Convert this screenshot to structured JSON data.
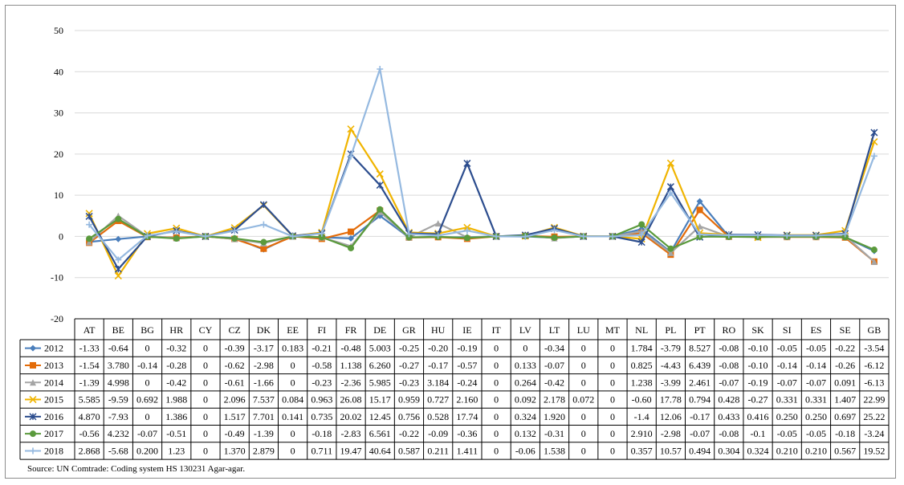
{
  "source_note": "Source: UN Comtrade: Coding system HS 130231 Agar-agar.",
  "chart_data": {
    "type": "line",
    "title": "",
    "xlabel": "",
    "ylabel": "",
    "ylim": [
      -20,
      50
    ],
    "yticks": [
      -20,
      -10,
      0,
      10,
      20,
      30,
      40,
      50
    ],
    "grid": true,
    "legend": "data-table-left",
    "categories": [
      "AT",
      "BE",
      "BG",
      "HR",
      "CY",
      "CZ",
      "DK",
      "EE",
      "FI",
      "FR",
      "DE",
      "GR",
      "HU",
      "IE",
      "IT",
      "LV",
      "LT",
      "LU",
      "MT",
      "NL",
      "PL",
      "PT",
      "RO",
      "SK",
      "SI",
      "ES",
      "SE",
      "GB"
    ],
    "series": [
      {
        "name": "2012",
        "color": "#4a7ebb",
        "marker": "diamond",
        "values": [
          -1.33,
          -0.64,
          0,
          -0.32,
          0,
          -0.39,
          -3.17,
          0.183,
          -0.21,
          -0.48,
          5.003,
          -0.25,
          -0.2,
          -0.19,
          0,
          0,
          -0.34,
          0,
          0,
          1.784,
          -3.79,
          8.527,
          -0.08,
          -0.1,
          -0.05,
          -0.05,
          -0.22,
          -3.54
        ],
        "labels": [
          "-1.33",
          "-0.64",
          "0",
          "-0.32",
          "0",
          "-0.39",
          "-3.17",
          "0.183",
          "-0.21",
          "-0.48",
          "5.003",
          "-0.25",
          "-0.20",
          "-0.19",
          "0",
          "0",
          "-0.34",
          "0",
          "0",
          "1.784",
          "-3.79",
          "8.527",
          "-0.08",
          "-0.10",
          "-0.05",
          "-0.05",
          "-0.22",
          "-3.54"
        ]
      },
      {
        "name": "2013",
        "color": "#e36c0a",
        "marker": "square",
        "values": [
          -1.54,
          3.78,
          -0.14,
          -0.28,
          0,
          -0.62,
          -2.98,
          0,
          -0.58,
          1.138,
          6.26,
          -0.27,
          -0.17,
          -0.57,
          0,
          0.133,
          -0.07,
          0,
          0,
          0.825,
          -4.43,
          6.439,
          -0.08,
          -0.1,
          -0.14,
          -0.14,
          -0.26,
          -6.12
        ],
        "labels": [
          "-1.54",
          "3.780",
          "-0.14",
          "-0.28",
          "0",
          "-0.62",
          "-2.98",
          "0",
          "-0.58",
          "1.138",
          "6.260",
          "-0.27",
          "-0.17",
          "-0.57",
          "0",
          "0.133",
          "-0.07",
          "0",
          "0",
          "0.825",
          "-4.43",
          "6.439",
          "-0.08",
          "-0.10",
          "-0.14",
          "-0.14",
          "-0.26",
          "-6.12"
        ]
      },
      {
        "name": "2014",
        "color": "#a5a5a5",
        "marker": "triangle",
        "values": [
          -1.39,
          4.998,
          0,
          -0.42,
          0,
          -0.61,
          -1.66,
          0,
          -0.23,
          -2.36,
          5.985,
          -0.23,
          3.184,
          -0.24,
          0,
          0.264,
          -0.42,
          0,
          0,
          1.238,
          -3.99,
          2.461,
          -0.07,
          -0.19,
          -0.07,
          -0.07,
          0.091,
          -6.13
        ],
        "labels": [
          "-1.39",
          "4.998",
          "0",
          "-0.42",
          "0",
          "-0.61",
          "-1.66",
          "0",
          "-0.23",
          "-2.36",
          "5.985",
          "-0.23",
          "3.184",
          "-0.24",
          "0",
          "0.264",
          "-0.42",
          "0",
          "0",
          "1.238",
          "-3.99",
          "2.461",
          "-0.07",
          "-0.19",
          "-0.07",
          "-0.07",
          "0.091",
          "-6.13"
        ]
      },
      {
        "name": "2015",
        "color": "#f0b400",
        "marker": "x",
        "values": [
          5.585,
          -9.59,
          0.692,
          1.988,
          0,
          2.096,
          7.537,
          0.084,
          0.963,
          26.08,
          15.17,
          0.959,
          0.727,
          2.16,
          0,
          0.092,
          2.178,
          0.072,
          0,
          -0.6,
          17.78,
          0.794,
          0.428,
          -0.27,
          0.331,
          0.331,
          1.407,
          22.99
        ],
        "labels": [
          "5.585",
          "-9.59",
          "0.692",
          "1.988",
          "0",
          "2.096",
          "7.537",
          "0.084",
          "0.963",
          "26.08",
          "15.17",
          "0.959",
          "0.727",
          "2.160",
          "0",
          "0.092",
          "2.178",
          "0.072",
          "0",
          "-0.60",
          "17.78",
          "0.794",
          "0.428",
          "-0.27",
          "0.331",
          "0.331",
          "1.407",
          "22.99"
        ]
      },
      {
        "name": "2016",
        "color": "#2c4d8e",
        "marker": "star",
        "values": [
          4.87,
          -7.93,
          0,
          1.386,
          0,
          1.517,
          7.701,
          0.141,
          0.735,
          20.02,
          12.45,
          0.756,
          0.528,
          17.74,
          0,
          0.324,
          1.92,
          0,
          0,
          -1.4,
          12.06,
          -0.17,
          0.433,
          0.416,
          0.25,
          0.25,
          0.697,
          25.22
        ],
        "labels": [
          "4.870",
          "-7.93",
          "0",
          "1.386",
          "0",
          "1.517",
          "7.701",
          "0.141",
          "0.735",
          "20.02",
          "12.45",
          "0.756",
          "0.528",
          "17.74",
          "0",
          "0.324",
          "1.920",
          "0",
          "0",
          "-1.4",
          "12.06",
          "-0.17",
          "0.433",
          "0.416",
          "0.250",
          "0.250",
          "0.697",
          "25.22"
        ]
      },
      {
        "name": "2017",
        "color": "#5a9a3c",
        "marker": "circle",
        "values": [
          -0.56,
          4.232,
          -0.07,
          -0.51,
          0,
          -0.49,
          -1.39,
          0,
          -0.18,
          -2.83,
          6.561,
          -0.22,
          -0.09,
          -0.36,
          0,
          0.132,
          -0.31,
          0,
          0,
          2.91,
          -2.98,
          -0.07,
          -0.08,
          -0.1,
          -0.05,
          -0.05,
          -0.18,
          -3.24
        ],
        "labels": [
          "-0.56",
          "4.232",
          "-0.07",
          "-0.51",
          "0",
          "-0.49",
          "-1.39",
          "0",
          "-0.18",
          "-2.83",
          "6.561",
          "-0.22",
          "-0.09",
          "-0.36",
          "0",
          "0.132",
          "-0.31",
          "0",
          "0",
          "2.910",
          "-2.98",
          "-0.07",
          "-0.08",
          "-0.1",
          "-0.05",
          "-0.05",
          "-0.18",
          "-3.24"
        ]
      },
      {
        "name": "2018",
        "color": "#95b9e0",
        "marker": "plus",
        "values": [
          2.868,
          -5.68,
          0.2,
          1.23,
          0,
          1.37,
          2.879,
          0,
          0.711,
          19.47,
          40.64,
          0.587,
          0.211,
          1.411,
          0,
          -0.06,
          1.538,
          0,
          0,
          0.357,
          10.57,
          0.494,
          0.304,
          0.324,
          0.21,
          0.21,
          0.567,
          19.52
        ],
        "labels": [
          "2.868",
          "-5.68",
          "0.200",
          "1.23",
          "0",
          "1.370",
          "2.879",
          "0",
          "0.711",
          "19.47",
          "40.64",
          "0.587",
          "0.211",
          "1.411",
          "0",
          "-0.06",
          "1.538",
          "0",
          "0",
          "0.357",
          "10.57",
          "0.494",
          "0.304",
          "0.324",
          "0.210",
          "0.210",
          "0.567",
          "19.52"
        ]
      }
    ]
  }
}
